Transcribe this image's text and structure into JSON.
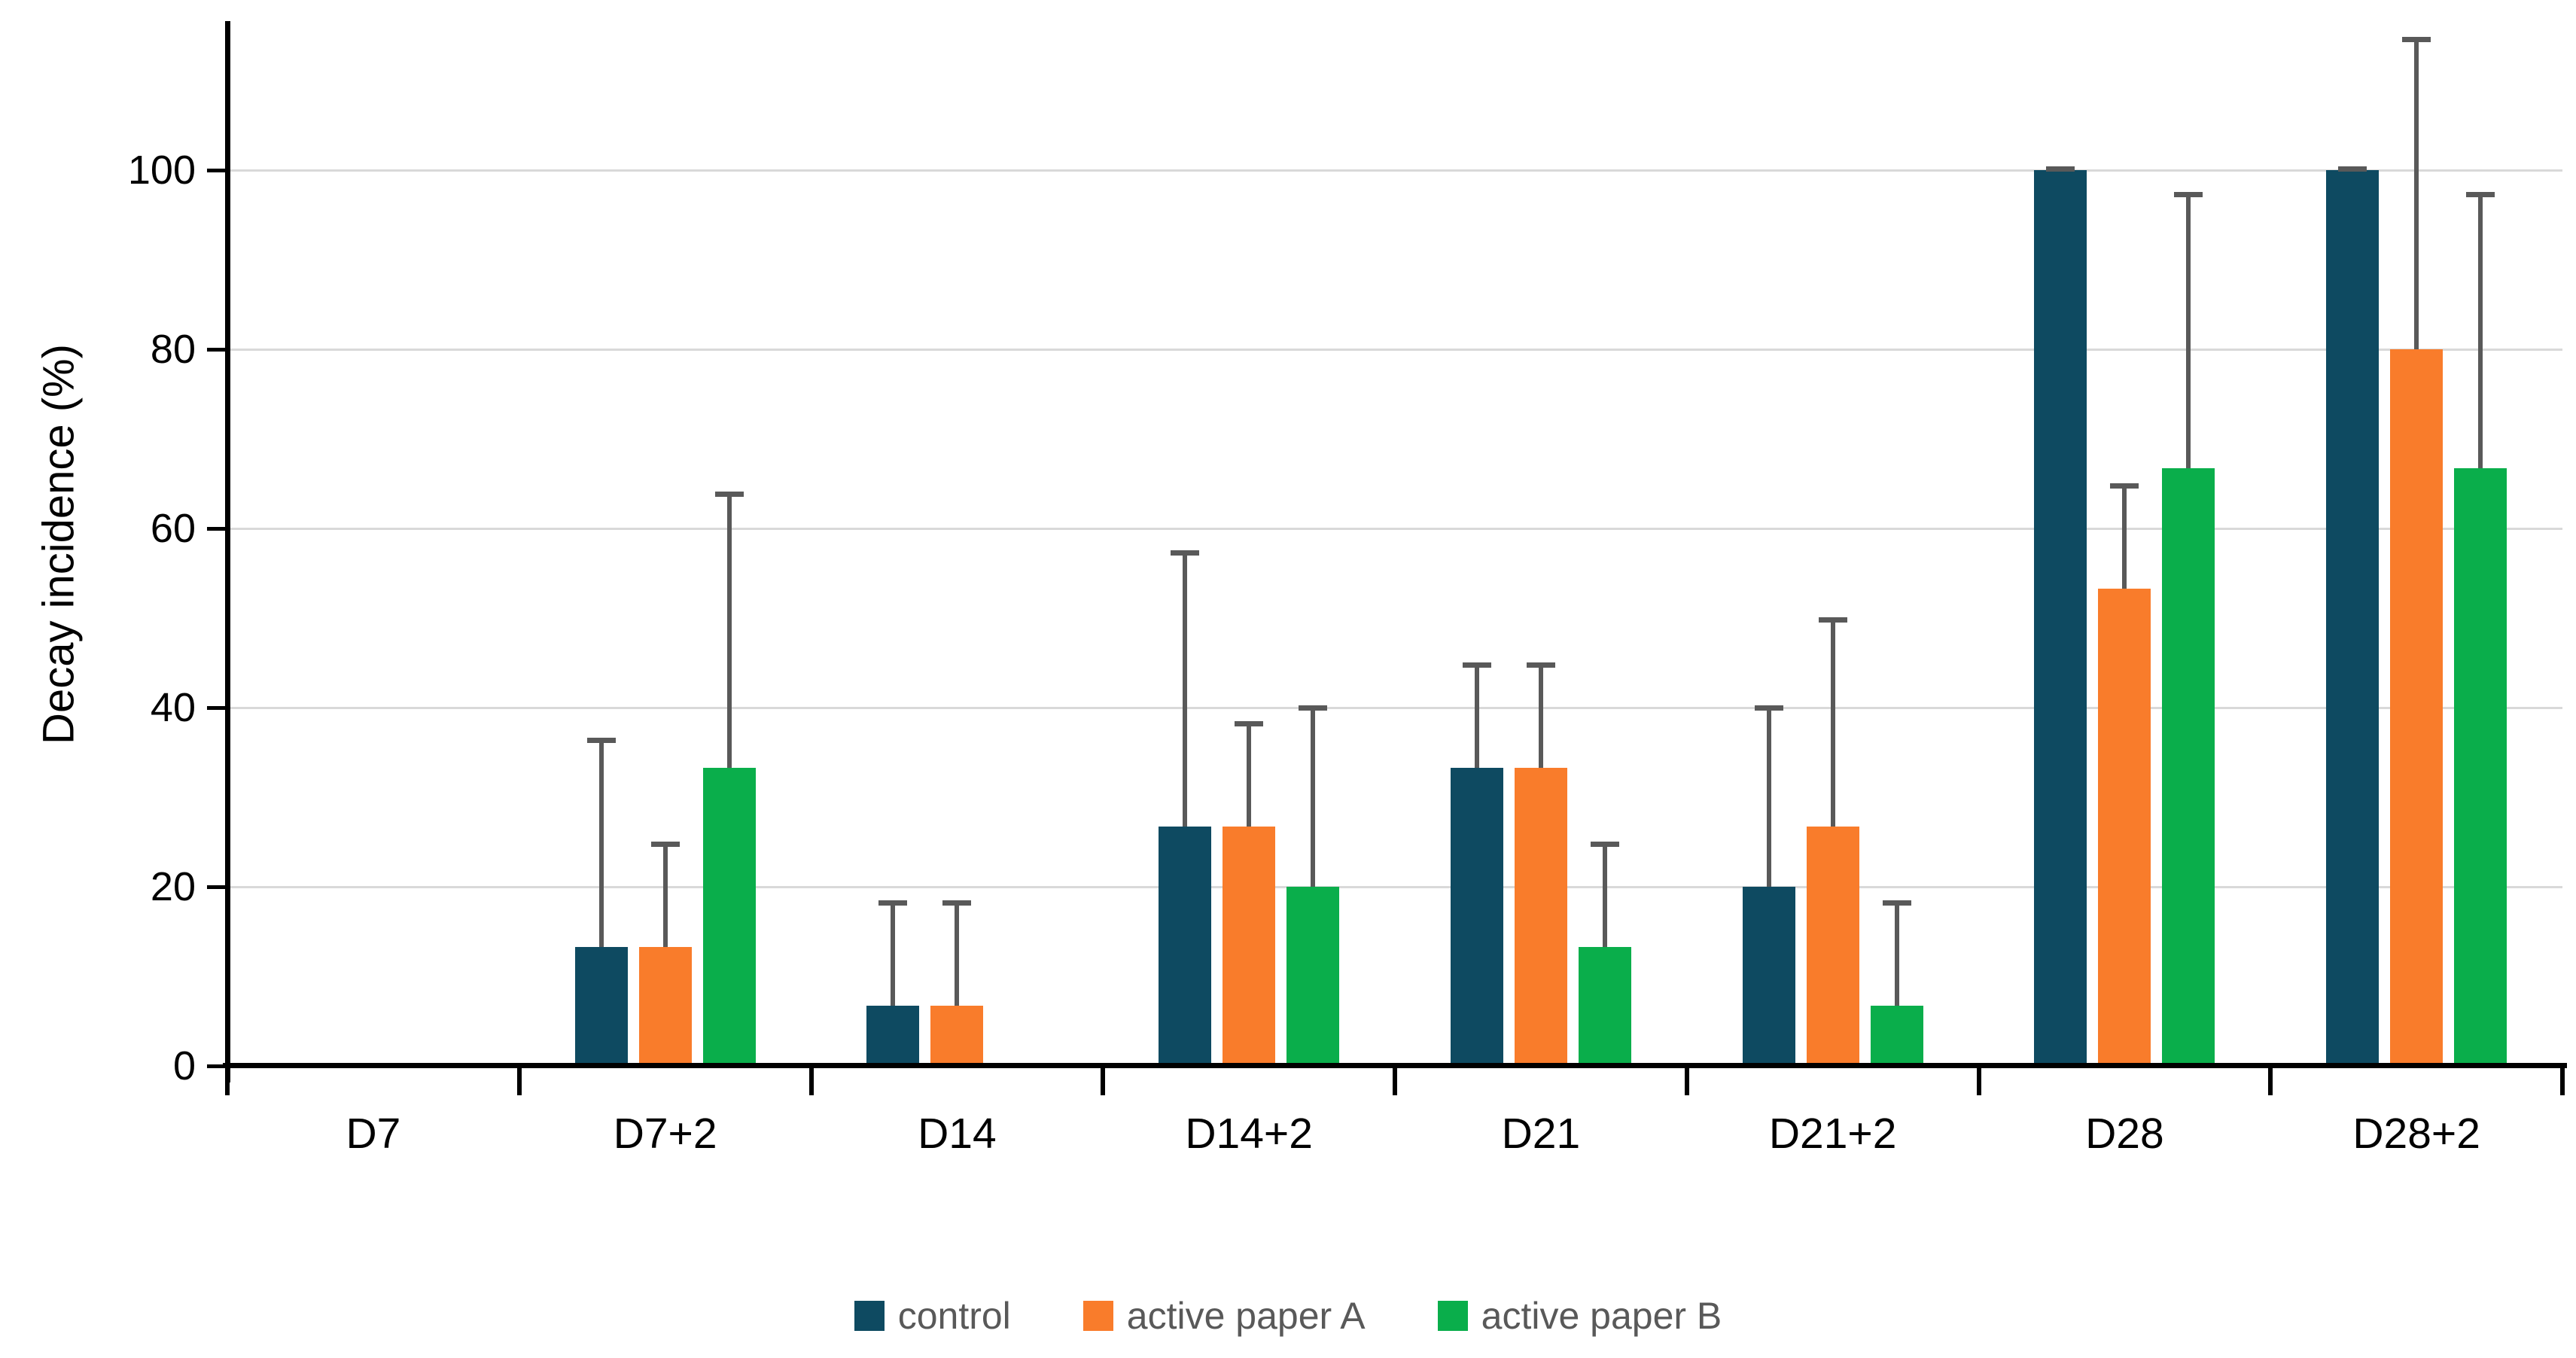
{
  "chart_data": {
    "type": "bar",
    "title": "",
    "xlabel": "",
    "ylabel": "Decay incidence (%)",
    "categories": [
      "D7",
      "D7+2",
      "D14",
      "D14+2",
      "D21",
      "D21+2",
      "D28",
      "D28+2"
    ],
    "y_tick_labels": [
      "0",
      "20",
      "40",
      "60",
      "80",
      "100"
    ],
    "y_ticks": [
      0,
      20,
      40,
      60,
      80,
      100
    ],
    "ylim": [
      0,
      115.7
    ],
    "grid": "horizontal-major",
    "legend_position": "bottom-center",
    "error_bars": "upper-only, mean + SD, gray caps",
    "series": [
      {
        "name": "control",
        "color": "#0e4a61",
        "values": [
          0,
          13.3,
          6.7,
          26.7,
          33.3,
          20.0,
          100.0,
          100.0
        ],
        "sd": [
          0,
          23.1,
          11.5,
          30.6,
          11.5,
          20.0,
          0,
          0
        ],
        "error_tops": [
          0,
          36.4,
          18.2,
          57.3,
          44.8,
          40.0,
          100.0,
          100.0
        ]
      },
      {
        "name": "active paper A",
        "color": "#f97c2b",
        "values": [
          0,
          13.3,
          6.7,
          26.7,
          33.3,
          26.7,
          53.3,
          80.0
        ],
        "sd": [
          0,
          11.5,
          11.5,
          11.5,
          11.5,
          23.1,
          11.5,
          34.6
        ],
        "error_tops": [
          0,
          24.8,
          18.2,
          38.2,
          44.8,
          49.8,
          64.8,
          114.6
        ]
      },
      {
        "name": "active paper B",
        "color": "#0aae4b",
        "values": [
          0,
          33.3,
          0,
          20.0,
          13.3,
          6.7,
          66.7,
          66.7
        ],
        "sd": [
          0,
          30.6,
          0,
          20.0,
          11.5,
          11.5,
          30.6,
          30.6
        ],
        "error_tops": [
          0,
          63.9,
          0,
          40.0,
          24.8,
          18.2,
          97.3,
          97.3
        ]
      }
    ],
    "colors": {
      "error_bar": "#595959",
      "gridline": "#d9d9d9",
      "axis": "#000000",
      "tick_label": "#000000",
      "legend_text": "#595959",
      "background": "#ffffff"
    }
  }
}
